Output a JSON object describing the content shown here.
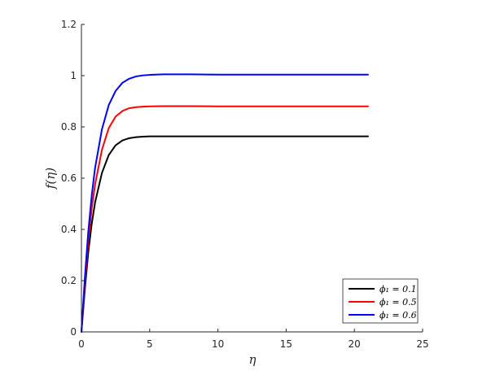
{
  "chart_data": {
    "type": "line",
    "title": "",
    "xlabel": "η",
    "ylabel": "f(η)",
    "xlim": [
      0,
      25
    ],
    "ylim": [
      0,
      1.2
    ],
    "xticks": [
      0,
      5,
      10,
      15,
      20,
      25
    ],
    "yticks": [
      0,
      0.2,
      0.4,
      0.6,
      0.8,
      1,
      1.2
    ],
    "xtick_labels": [
      "0",
      "5",
      "10",
      "15",
      "20",
      "25"
    ],
    "ytick_labels": [
      "0",
      "0.2",
      "0.4",
      "0.6",
      "0.8",
      "1",
      "1.2"
    ],
    "grid": false,
    "legend_position": "bottom-right",
    "x": [
      0,
      0.25,
      0.5,
      0.75,
      1,
      1.5,
      2,
      2.5,
      3,
      3.5,
      4,
      4.5,
      5,
      6,
      7,
      8,
      10,
      12,
      15,
      18,
      21
    ],
    "series": [
      {
        "name": "ϕ₁ = 0.1",
        "color": "#000000",
        "values": [
          0,
          0.165,
          0.31,
          0.42,
          0.505,
          0.62,
          0.69,
          0.728,
          0.747,
          0.756,
          0.76,
          0.762,
          0.763,
          0.763,
          0.763,
          0.763,
          0.763,
          0.763,
          0.763,
          0.763,
          0.763
        ]
      },
      {
        "name": "ϕ₁ = 0.5",
        "color": "#ff0000",
        "values": [
          0,
          0.19,
          0.355,
          0.48,
          0.575,
          0.71,
          0.795,
          0.84,
          0.862,
          0.873,
          0.877,
          0.879,
          0.88,
          0.881,
          0.881,
          0.881,
          0.88,
          0.88,
          0.88,
          0.88,
          0.88
        ]
      },
      {
        "name": "ϕ₁ = 0.6",
        "color": "#0000ff",
        "values": [
          0,
          0.21,
          0.39,
          0.53,
          0.64,
          0.79,
          0.885,
          0.94,
          0.972,
          0.988,
          0.997,
          1.001,
          1.003,
          1.005,
          1.005,
          1.005,
          1.004,
          1.004,
          1.004,
          1.004,
          1.004
        ]
      }
    ]
  }
}
